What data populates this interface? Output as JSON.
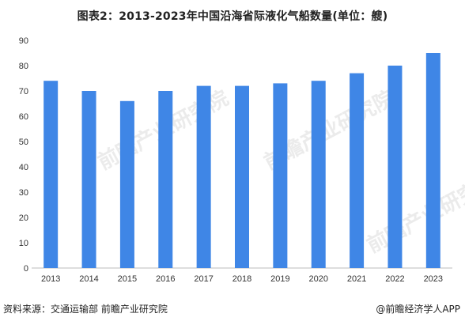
{
  "chart_data": {
    "type": "bar",
    "title": "图表2：2013-2023年中国沿海省际液化气船数量(单位：艘)",
    "categories": [
      "2013",
      "2014",
      "2015",
      "2016",
      "2017",
      "2018",
      "2019",
      "2020",
      "2021",
      "2022",
      "2023"
    ],
    "values": [
      74,
      70,
      66,
      70,
      72,
      72,
      73,
      74,
      77,
      80,
      85
    ],
    "ylim": [
      0,
      90
    ],
    "yticks": [
      0,
      10,
      20,
      30,
      40,
      50,
      60,
      70,
      80,
      90
    ],
    "xlabel": "",
    "ylabel": "",
    "grid": false,
    "bar_color": "#3f86e6"
  },
  "footer": {
    "source": "资料来源：交通运输部 前瞻产业研究院",
    "brand": "@前瞻经济学人APP"
  },
  "watermark": "前瞻产业研究院"
}
